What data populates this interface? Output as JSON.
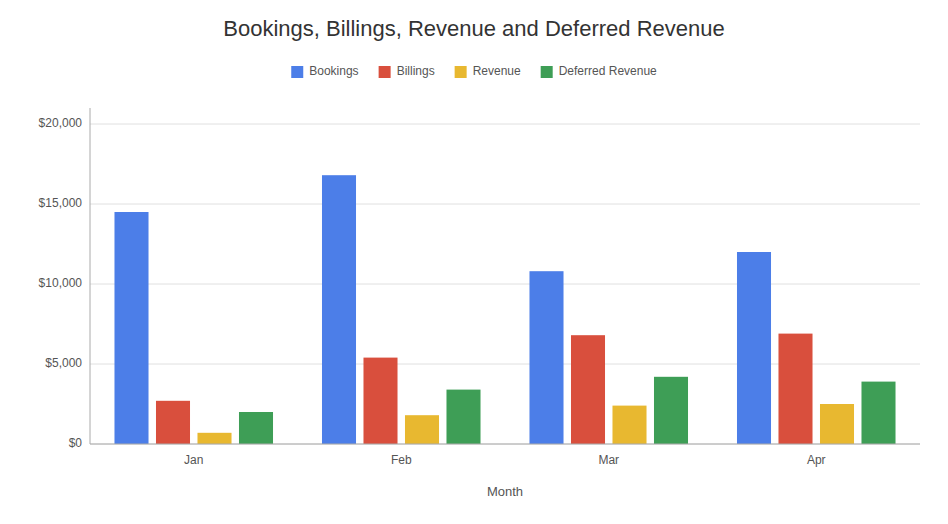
{
  "chart_data": {
    "type": "bar",
    "title": "Bookings, Billings, Revenue and Deferred Revenue",
    "xlabel": "Month",
    "categories": [
      "Jan",
      "Feb",
      "Mar",
      "Apr"
    ],
    "series": [
      {
        "name": "Bookings",
        "color": "#4C7EE8",
        "values": [
          14500,
          16800,
          10800,
          12000
        ]
      },
      {
        "name": "Billings",
        "color": "#D94F3D",
        "values": [
          2700,
          5400,
          6800,
          6900
        ]
      },
      {
        "name": "Revenue",
        "color": "#E8B830",
        "values": [
          700,
          1800,
          2400,
          2500
        ]
      },
      {
        "name": "Deferred Revenue",
        "color": "#3E9E56",
        "values": [
          2000,
          3400,
          4200,
          3900
        ]
      }
    ],
    "ylim": [
      0,
      21000
    ],
    "yticks": [
      {
        "value": 0,
        "label": "$0"
      },
      {
        "value": 5000,
        "label": "$5,000"
      },
      {
        "value": 10000,
        "label": "$10,000"
      },
      {
        "value": 15000,
        "label": "$15,000"
      },
      {
        "value": 20000,
        "label": "$20,000"
      }
    ],
    "grid": true,
    "legend": "top"
  }
}
